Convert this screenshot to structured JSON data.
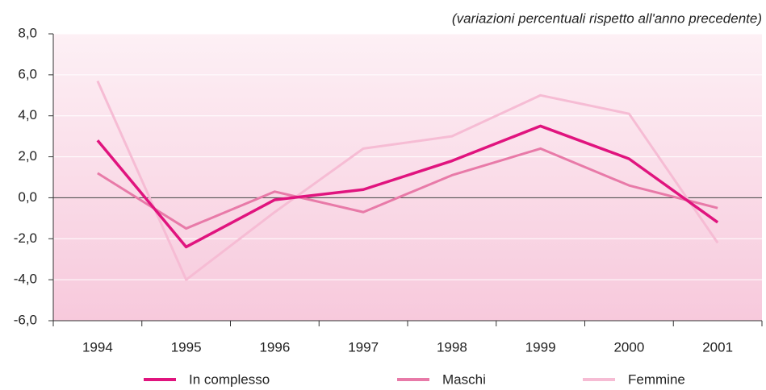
{
  "chart_data": {
    "type": "line",
    "subtitle": "(variazioni percentuali rispetto all'anno precedente)",
    "categories": [
      "1994",
      "1995",
      "1996",
      "1997",
      "1998",
      "1999",
      "2000",
      "2001"
    ],
    "series": [
      {
        "name": "In complesso",
        "color": "#e0147e",
        "values": [
          2.8,
          -2.4,
          -0.1,
          0.4,
          1.8,
          3.5,
          1.9,
          -1.2
        ]
      },
      {
        "name": "Maschi",
        "color": "#e87aa8",
        "values": [
          1.2,
          -1.5,
          0.3,
          -0.7,
          1.1,
          2.4,
          0.6,
          -0.5
        ]
      },
      {
        "name": "Femmine",
        "color": "#f6bcd4",
        "values": [
          5.7,
          -4.0,
          -0.7,
          2.4,
          3.0,
          5.0,
          4.1,
          -2.2
        ]
      }
    ],
    "ylim": [
      -6,
      8
    ],
    "yticks": [
      {
        "value": -6,
        "label": "-6,0"
      },
      {
        "value": -4,
        "label": "-4,0"
      },
      {
        "value": -2,
        "label": "-2,0"
      },
      {
        "value": 0,
        "label": "0,0"
      },
      {
        "value": 2,
        "label": "2,0"
      },
      {
        "value": 4,
        "label": "4,0"
      },
      {
        "value": 6,
        "label": "6,0"
      },
      {
        "value": 8,
        "label": "8,0"
      }
    ],
    "grid": true
  }
}
